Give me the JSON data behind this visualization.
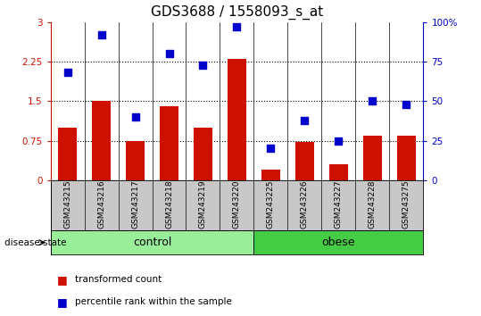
{
  "title": "GDS3688 / 1558093_s_at",
  "samples": [
    "GSM243215",
    "GSM243216",
    "GSM243217",
    "GSM243218",
    "GSM243219",
    "GSM243220",
    "GSM243225",
    "GSM243226",
    "GSM243227",
    "GSM243228",
    "GSM243275"
  ],
  "transformed_count": [
    1.0,
    1.5,
    0.75,
    1.4,
    1.0,
    2.3,
    0.2,
    0.72,
    0.3,
    0.85,
    0.85
  ],
  "percentile_rank": [
    68,
    92,
    40,
    80,
    73,
    97,
    20,
    38,
    25,
    50,
    48
  ],
  "bar_color": "#cc1100",
  "dot_color": "#0000cc",
  "left_ylim": [
    0,
    3
  ],
  "right_ylim": [
    0,
    100
  ],
  "left_yticks": [
    0,
    0.75,
    1.5,
    2.25,
    3
  ],
  "right_yticks": [
    0,
    25,
    50,
    75,
    100
  ],
  "left_yticklabels": [
    "0",
    "0.75",
    "1.5",
    "2.25",
    "3"
  ],
  "right_yticklabels": [
    "0",
    "25",
    "50",
    "75",
    "100%"
  ],
  "hlines": [
    0.75,
    1.5,
    2.25
  ],
  "n_control": 6,
  "n_obese": 5,
  "control_color": "#99ee99",
  "obese_color": "#44cc44",
  "label_bar": "transformed count",
  "label_dot": "percentile rank within the sample",
  "disease_state_label": "disease state",
  "control_label": "control",
  "obese_label": "obese",
  "title_fontsize": 11,
  "tick_label_fontsize": 7.5,
  "bar_width": 0.55,
  "dot_size": 35,
  "gray_color": "#c8c8c8"
}
